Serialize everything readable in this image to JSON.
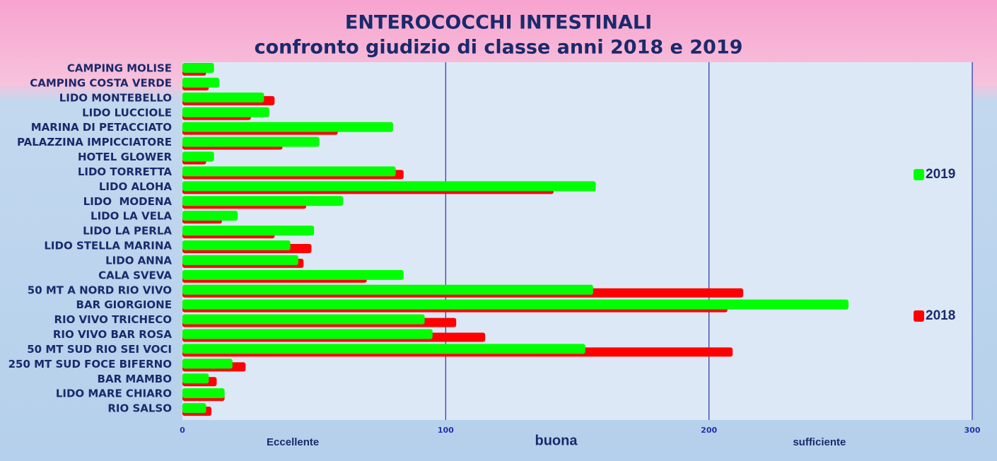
{
  "chart_data": {
    "type": "hbar",
    "title": "ENTEROCOCCHI INTESTINALI",
    "subtitle": "confronto giudizio di classe anni 2018 e 2019",
    "categories": [
      "CAMPING MOLISE",
      "CAMPING COSTA VERDE",
      "LIDO MONTEBELLO",
      "LIDO LUCCIOLE",
      "MARINA DI PETACCIATO",
      "PALAZZINA IMPICCIATORE",
      "HOTEL GLOWER",
      "LIDO TORRETTA",
      "LIDO ALOHA",
      "LIDO  MODENA",
      "LIDO LA VELA",
      "LIDO LA PERLA",
      "LIDO STELLA MARINA",
      "LIDO ANNA",
      "CALA SVEVA",
      "50 MT A NORD RIO VIVO",
      "BAR GIORGIONE",
      "RIO VIVO TRICHECO",
      "RIO VIVO BAR ROSA",
      "50 MT SUD RIO SEI VOCI",
      "250 MT SUD FOCE BIFERNO",
      "BAR MAMBO",
      "LIDO MARE CHIARO",
      "RIO SALSO"
    ],
    "series": [
      {
        "name": "2018",
        "color": "#ff0000",
        "values": [
          9,
          10,
          35,
          26,
          59,
          38,
          9,
          84,
          141,
          47,
          15,
          35,
          49,
          46,
          70,
          213,
          207,
          104,
          115,
          209,
          24,
          13,
          16,
          11
        ]
      },
      {
        "name": "2019",
        "color": "#00ff00",
        "values": [
          12,
          14,
          31,
          33,
          80,
          52,
          12,
          81,
          157,
          61,
          21,
          50,
          41,
          44,
          84,
          156,
          253,
          92,
          95,
          153,
          19,
          10,
          16,
          9
        ]
      }
    ],
    "xlim": [
      0,
      300
    ],
    "xticks": [
      0,
      100,
      200,
      300
    ],
    "grid": true,
    "zone_labels": [
      "Eccellente",
      "buona",
      "sufficiente"
    ]
  }
}
